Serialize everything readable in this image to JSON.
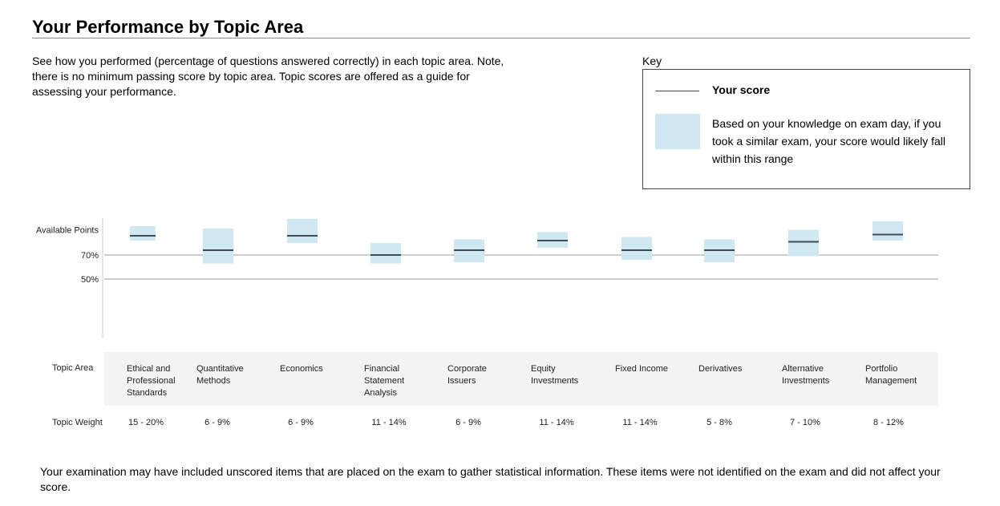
{
  "header": {
    "title": "Your Performance by Topic Area",
    "intro": "See how you performed (percentage of questions answered correctly) in each topic area. Note, there is no minimum passing score by topic area. Topic scores are offered as a guide for assessing your performance."
  },
  "key": {
    "label": "Key",
    "score_label": "Your score",
    "range_text": "Based on your knowledge on exam day, if you took a similar exam, your score would likely fall within this range"
  },
  "colors": {
    "range_fill": "#cfe7f1",
    "score_line": "#3f4a52",
    "reference_line": "#9e9e9e"
  },
  "table": {
    "topic_area_label": "Topic Area",
    "topic_weight_label": "Topic Weight",
    "topics": [
      {
        "name": "Ethical and Professional Standards",
        "weight": "15 - 20%"
      },
      {
        "name": "Quantitative Methods",
        "weight": "6 - 9%"
      },
      {
        "name": "Economics",
        "weight": "6 - 9%"
      },
      {
        "name": "Financial Statement Analysis",
        "weight": "11 - 14%"
      },
      {
        "name": "Corporate Issuers",
        "weight": "6 - 9%"
      },
      {
        "name": "Equity Investments",
        "weight": "11 - 14%"
      },
      {
        "name": "Fixed Income",
        "weight": "11 - 14%"
      },
      {
        "name": "Derivatives",
        "weight": "5 - 8%"
      },
      {
        "name": "Alternative Investments",
        "weight": "7 - 10%"
      },
      {
        "name": "Portfolio Management",
        "weight": "8 - 12%"
      }
    ]
  },
  "chart_data": {
    "type": "range",
    "y_ticks": [
      "Available Points",
      "70%",
      "50%"
    ],
    "y_tick_values": [
      91,
      70,
      50
    ],
    "reference_lines": [
      70,
      50
    ],
    "categories": [
      "Ethical and Professional Standards",
      "Quantitative Methods",
      "Economics",
      "Financial Statement Analysis",
      "Corporate Issuers",
      "Equity Investments",
      "Fixed Income",
      "Derivatives",
      "Alternative Investments",
      "Portfolio Management"
    ],
    "score": [
      86,
      74,
      86,
      70,
      74,
      82,
      74,
      74,
      81,
      87
    ],
    "range_low": [
      82,
      63,
      80,
      63,
      64,
      76,
      66,
      64,
      69,
      82
    ],
    "range_high": [
      94,
      92,
      100,
      80,
      83,
      89,
      85,
      83,
      91,
      98
    ]
  },
  "footer": {
    "note": "Your examination may have included unscored items that are placed on the exam to gather statistical information. These items were not identified on the exam and did not affect your score."
  }
}
